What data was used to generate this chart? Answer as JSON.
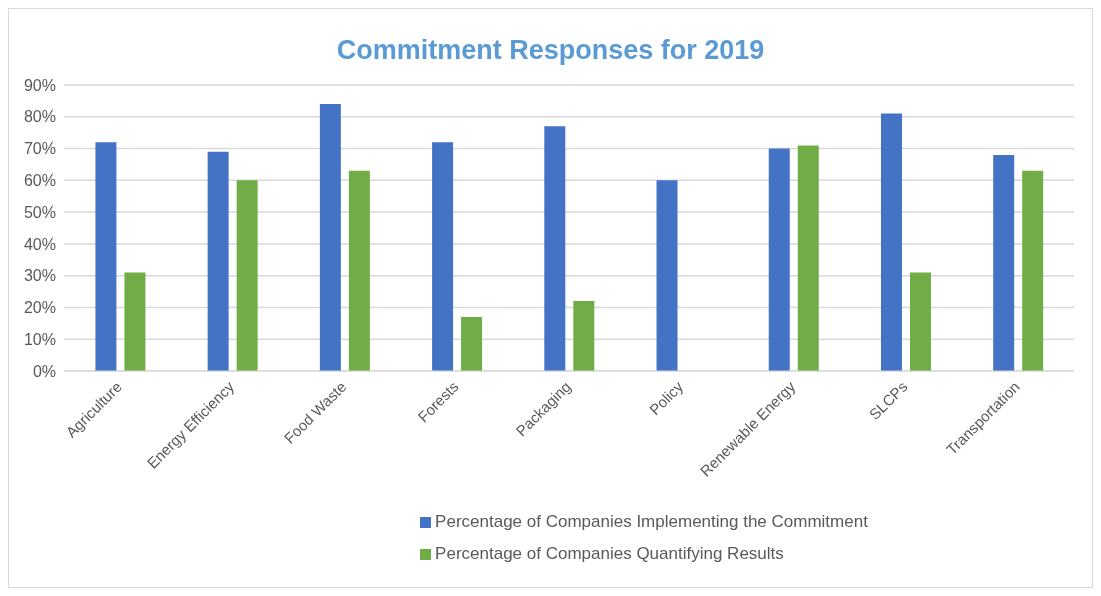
{
  "chart_data": {
    "type": "bar",
    "title": "Commitment Responses for 2019",
    "categories": [
      "Agriculture",
      "Energy Efficiency",
      "Food Waste",
      "Forests",
      "Packaging",
      "Policy",
      "Renewable Energy",
      "SLCPs",
      "Transportation"
    ],
    "series": [
      {
        "name": "Percentage of Companies Implementing the Commitment",
        "color": "#4472c4",
        "values": [
          72,
          69,
          84,
          72,
          77,
          60,
          70,
          81,
          68
        ]
      },
      {
        "name": "Percentage of Companies Quantifying Results",
        "color": "#70ad47",
        "values": [
          31,
          60,
          63,
          17,
          22,
          null,
          71,
          31,
          63
        ]
      }
    ],
    "ylim": [
      0,
      90
    ],
    "yticks": [
      {
        "value": 0,
        "label": "0%"
      },
      {
        "value": 10,
        "label": "10%"
      },
      {
        "value": 20,
        "label": "20%"
      },
      {
        "value": 30,
        "label": "30%"
      },
      {
        "value": 40,
        "label": "40%"
      },
      {
        "value": 50,
        "label": "50%"
      },
      {
        "value": 60,
        "label": "60%"
      },
      {
        "value": 70,
        "label": "70%"
      },
      {
        "value": 80,
        "label": "80%"
      },
      {
        "value": 90,
        "label": "90%"
      }
    ],
    "grid": "y",
    "legend": "bottom"
  }
}
